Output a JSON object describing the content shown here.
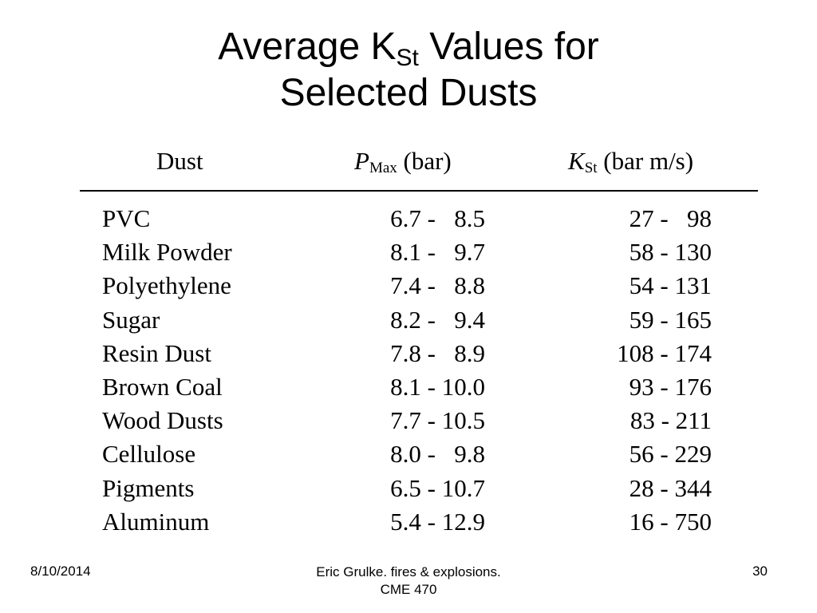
{
  "slide": {
    "title_part1": "Average K",
    "title_sub": "St",
    "title_part2": " Values for",
    "title_line2": "Selected Dusts"
  },
  "table": {
    "headers": {
      "dust": "Dust",
      "pmax_symbol": "P",
      "pmax_sub": "Max",
      "pmax_unit": " (bar)",
      "kst_symbol": "K",
      "kst_sub": "St",
      "kst_unit": " (bar m/s)"
    },
    "rows": [
      {
        "dust": "PVC",
        "pmax": "6.7 -   8.5",
        "kst": "27 -   98"
      },
      {
        "dust": "Milk Powder",
        "pmax": "8.1 -   9.7",
        "kst": "58 - 130"
      },
      {
        "dust": "Polyethylene",
        "pmax": "7.4 -   8.8",
        "kst": "54 - 131"
      },
      {
        "dust": "Sugar",
        "pmax": "8.2 -   9.4",
        "kst": "59 - 165"
      },
      {
        "dust": "Resin Dust",
        "pmax": "7.8 -   8.9",
        "kst": "108 - 174"
      },
      {
        "dust": "Brown Coal",
        "pmax": "8.1 - 10.0",
        "kst": "93 - 176"
      },
      {
        "dust": "Wood Dusts",
        "pmax": "7.7 - 10.5",
        "kst": "83 - 211"
      },
      {
        "dust": "Cellulose",
        "pmax": "8.0 -   9.8",
        "kst": "56 - 229"
      },
      {
        "dust": "Pigments",
        "pmax": "6.5 - 10.7",
        "kst": "28 - 344"
      },
      {
        "dust": "Aluminum",
        "pmax": "5.4 - 12.9",
        "kst": "16 - 750"
      }
    ]
  },
  "footer": {
    "date": "8/10/2014",
    "center_line1": "Eric Grulke.  fires & explosions.",
    "center_line2": "CME 470",
    "page": "30"
  }
}
